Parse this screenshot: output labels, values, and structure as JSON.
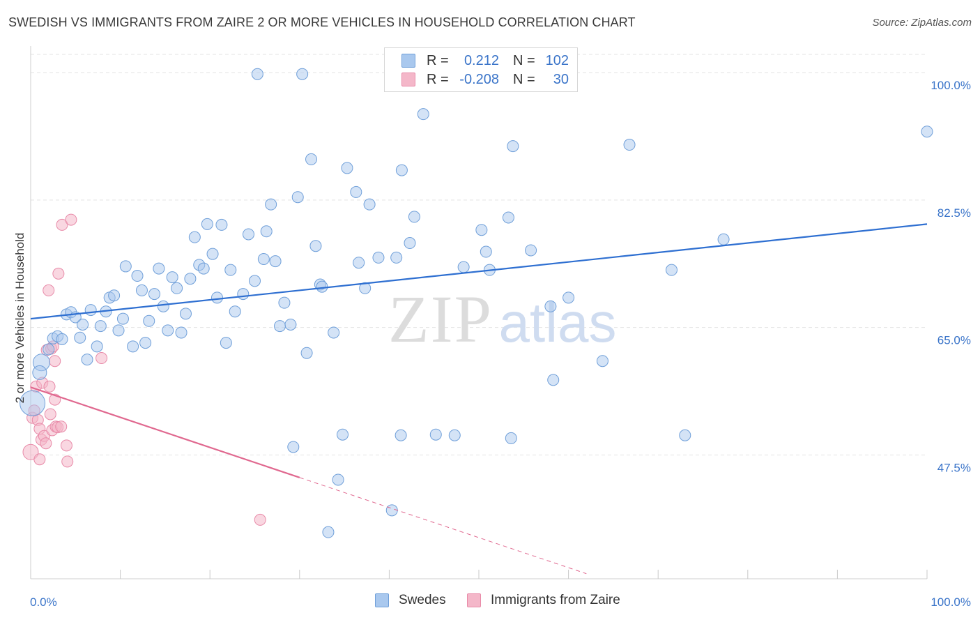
{
  "title": "SWEDISH VS IMMIGRANTS FROM ZAIRE 2 OR MORE VEHICLES IN HOUSEHOLD CORRELATION CHART",
  "source": "Source: ZipAtlas.com",
  "watermark": {
    "zip": "ZIP",
    "atlas": "atlas"
  },
  "colors": {
    "blue_fill": "#a9c8ee",
    "blue_stroke": "#6f9fd9",
    "blue_line": "#2e6fd1",
    "pink_fill": "#f4b7c9",
    "pink_stroke": "#e88aa8",
    "pink_line": "#e0688f",
    "axis_label": "#3a74c9",
    "grid": "#e3e3e3"
  },
  "legend": {
    "rows": [
      {
        "r_label": "R =",
        "r_value": "0.212",
        "n_label": "N =",
        "n_value": "102",
        "color": "#a9c8ee"
      },
      {
        "r_label": "R =",
        "r_value": "-0.208",
        "n_label": "N =",
        "n_value": "30",
        "color": "#f4b7c9"
      }
    ]
  },
  "bottom_legend": [
    {
      "label": "Swedes",
      "color": "#a9c8ee"
    },
    {
      "label": "Immigrants from Zaire",
      "color": "#f4b7c9"
    }
  ],
  "chart_data": {
    "type": "scatter",
    "title": "SWEDISH VS IMMIGRANTS FROM ZAIRE 2 OR MORE VEHICLES IN HOUSEHOLD CORRELATION CHART",
    "xlabel": "",
    "ylabel": "2 or more Vehicles in Household",
    "xlim": [
      0,
      100
    ],
    "ylim": [
      30.5,
      102.5
    ],
    "x_tick_labels": [
      "0.0%",
      "100.0%"
    ],
    "y_ticks": [
      47.5,
      65.0,
      82.5,
      100.0
    ],
    "y_tick_labels": [
      "47.5%",
      "65.0%",
      "82.5%",
      "100.0%"
    ],
    "grid": true,
    "legend_position": "top-center",
    "series": [
      {
        "name": "Swedes",
        "r": 0.212,
        "n": 102,
        "trend": {
          "x": [
            0,
            100
          ],
          "y": [
            66.2,
            79.2
          ]
        },
        "points": [
          [
            0.2,
            54.6,
            18
          ],
          [
            1.2,
            60.2,
            12
          ],
          [
            1.0,
            58.8,
            10
          ],
          [
            2.0,
            62.0,
            8
          ],
          [
            2.5,
            63.5,
            8
          ],
          [
            3.0,
            63.8,
            8
          ],
          [
            3.5,
            63.4,
            8
          ],
          [
            4.0,
            66.8,
            8
          ],
          [
            4.5,
            67.1,
            8
          ],
          [
            5.0,
            66.4,
            8
          ],
          [
            5.5,
            63.6,
            8
          ],
          [
            5.8,
            65.4,
            8
          ],
          [
            6.3,
            60.6,
            8
          ],
          [
            6.7,
            67.4,
            8
          ],
          [
            7.4,
            62.4,
            8
          ],
          [
            7.8,
            65.2,
            8
          ],
          [
            8.4,
            67.2,
            8
          ],
          [
            8.8,
            69.1,
            8
          ],
          [
            9.3,
            69.4,
            8
          ],
          [
            9.8,
            64.6,
            8
          ],
          [
            10.3,
            66.2,
            8
          ],
          [
            10.6,
            73.4,
            8
          ],
          [
            11.4,
            62.4,
            8
          ],
          [
            11.9,
            72.1,
            8
          ],
          [
            12.4,
            70.1,
            8
          ],
          [
            12.8,
            62.9,
            8
          ],
          [
            13.2,
            65.9,
            8
          ],
          [
            13.8,
            69.6,
            8
          ],
          [
            14.3,
            73.1,
            8
          ],
          [
            14.8,
            67.9,
            8
          ],
          [
            15.3,
            64.6,
            8
          ],
          [
            15.8,
            71.9,
            8
          ],
          [
            16.3,
            70.4,
            8
          ],
          [
            16.8,
            64.3,
            8
          ],
          [
            17.3,
            66.9,
            8
          ],
          [
            17.8,
            71.7,
            8
          ],
          [
            18.3,
            77.4,
            8
          ],
          [
            18.8,
            73.6,
            8
          ],
          [
            19.3,
            73.1,
            8
          ],
          [
            19.7,
            79.2,
            8
          ],
          [
            20.3,
            75.1,
            8
          ],
          [
            20.8,
            69.1,
            8
          ],
          [
            21.3,
            79.1,
            8
          ],
          [
            21.8,
            62.9,
            8
          ],
          [
            22.3,
            72.9,
            8
          ],
          [
            22.8,
            67.2,
            8
          ],
          [
            23.7,
            69.6,
            8
          ],
          [
            24.3,
            77.8,
            8
          ],
          [
            25.0,
            71.4,
            8
          ],
          [
            25.3,
            99.8,
            8
          ],
          [
            26.0,
            74.4,
            8
          ],
          [
            26.3,
            78.2,
            8
          ],
          [
            26.8,
            81.9,
            8
          ],
          [
            27.3,
            74.1,
            8
          ],
          [
            27.8,
            65.2,
            8
          ],
          [
            28.3,
            68.4,
            8
          ],
          [
            29.0,
            65.4,
            8
          ],
          [
            29.8,
            82.9,
            8
          ],
          [
            30.3,
            99.8,
            8
          ],
          [
            30.8,
            61.5,
            8
          ],
          [
            31.3,
            88.1,
            8
          ],
          [
            31.8,
            76.2,
            8
          ],
          [
            32.3,
            70.9,
            8
          ],
          [
            32.5,
            70.6,
            8
          ],
          [
            33.2,
            36.9,
            8
          ],
          [
            33.8,
            64.3,
            8
          ],
          [
            34.3,
            44.1,
            8
          ],
          [
            34.8,
            50.3,
            8
          ],
          [
            35.3,
            86.9,
            8
          ],
          [
            36.3,
            83.6,
            8
          ],
          [
            36.6,
            73.9,
            8
          ],
          [
            37.3,
            70.4,
            8
          ],
          [
            37.8,
            81.9,
            8
          ],
          [
            38.8,
            74.6,
            8
          ],
          [
            40.3,
            39.9,
            8
          ],
          [
            40.8,
            74.6,
            8
          ],
          [
            41.3,
            50.2,
            8
          ],
          [
            41.4,
            86.6,
            8
          ],
          [
            42.3,
            76.6,
            8
          ],
          [
            42.8,
            80.2,
            8
          ],
          [
            43.8,
            94.3,
            8
          ],
          [
            45.2,
            50.3,
            8
          ],
          [
            47.3,
            50.2,
            8
          ],
          [
            48.3,
            73.3,
            8
          ],
          [
            50.3,
            78.4,
            8
          ],
          [
            50.8,
            75.4,
            8
          ],
          [
            51.2,
            72.9,
            8
          ],
          [
            53.3,
            80.1,
            8
          ],
          [
            53.6,
            49.8,
            8
          ],
          [
            53.8,
            89.9,
            8
          ],
          [
            54.5,
            99.8,
            8
          ],
          [
            58.0,
            67.9,
            8
          ],
          [
            58.3,
            57.8,
            8
          ],
          [
            60.0,
            69.1,
            8
          ],
          [
            63.8,
            60.4,
            8
          ],
          [
            66.8,
            90.1,
            8
          ],
          [
            71.5,
            72.9,
            8
          ],
          [
            73.0,
            50.2,
            8
          ],
          [
            77.3,
            77.1,
            8
          ],
          [
            100.0,
            91.9,
            8
          ],
          [
            29.3,
            48.6,
            8
          ],
          [
            55.8,
            75.6,
            8
          ]
        ]
      },
      {
        "name": "Immigrants from Zaire",
        "r": -0.208,
        "n": 30,
        "trend": {
          "x": [
            0,
            30
          ],
          "y": [
            56.8,
            44.4
          ]
        },
        "trend_dashed": {
          "x": [
            30,
            62
          ],
          "y": [
            44.4,
            31.2
          ]
        },
        "points": [
          [
            0.0,
            47.9,
            11
          ],
          [
            0.2,
            52.6,
            8
          ],
          [
            0.4,
            53.6,
            8
          ],
          [
            0.6,
            56.9,
            8
          ],
          [
            0.8,
            52.3,
            8
          ],
          [
            1.0,
            51.1,
            8
          ],
          [
            1.0,
            46.9,
            8
          ],
          [
            1.2,
            49.6,
            8
          ],
          [
            1.3,
            57.4,
            8
          ],
          [
            1.5,
            50.1,
            8
          ],
          [
            1.7,
            49.1,
            8
          ],
          [
            1.8,
            61.9,
            8
          ],
          [
            2.0,
            70.1,
            8
          ],
          [
            2.1,
            56.9,
            8
          ],
          [
            2.2,
            53.1,
            8
          ],
          [
            2.3,
            62.1,
            8
          ],
          [
            2.4,
            50.9,
            8
          ],
          [
            2.5,
            62.4,
            8
          ],
          [
            2.7,
            60.4,
            8
          ],
          [
            2.7,
            55.1,
            8
          ],
          [
            2.8,
            51.4,
            8
          ],
          [
            3.0,
            51.3,
            8
          ],
          [
            3.1,
            72.4,
            8
          ],
          [
            3.4,
            51.4,
            8
          ],
          [
            3.5,
            79.1,
            8
          ],
          [
            4.0,
            48.8,
            8
          ],
          [
            4.1,
            46.6,
            8
          ],
          [
            4.5,
            79.8,
            8
          ],
          [
            7.9,
            60.8,
            8
          ],
          [
            25.6,
            38.6,
            8
          ]
        ]
      }
    ]
  }
}
